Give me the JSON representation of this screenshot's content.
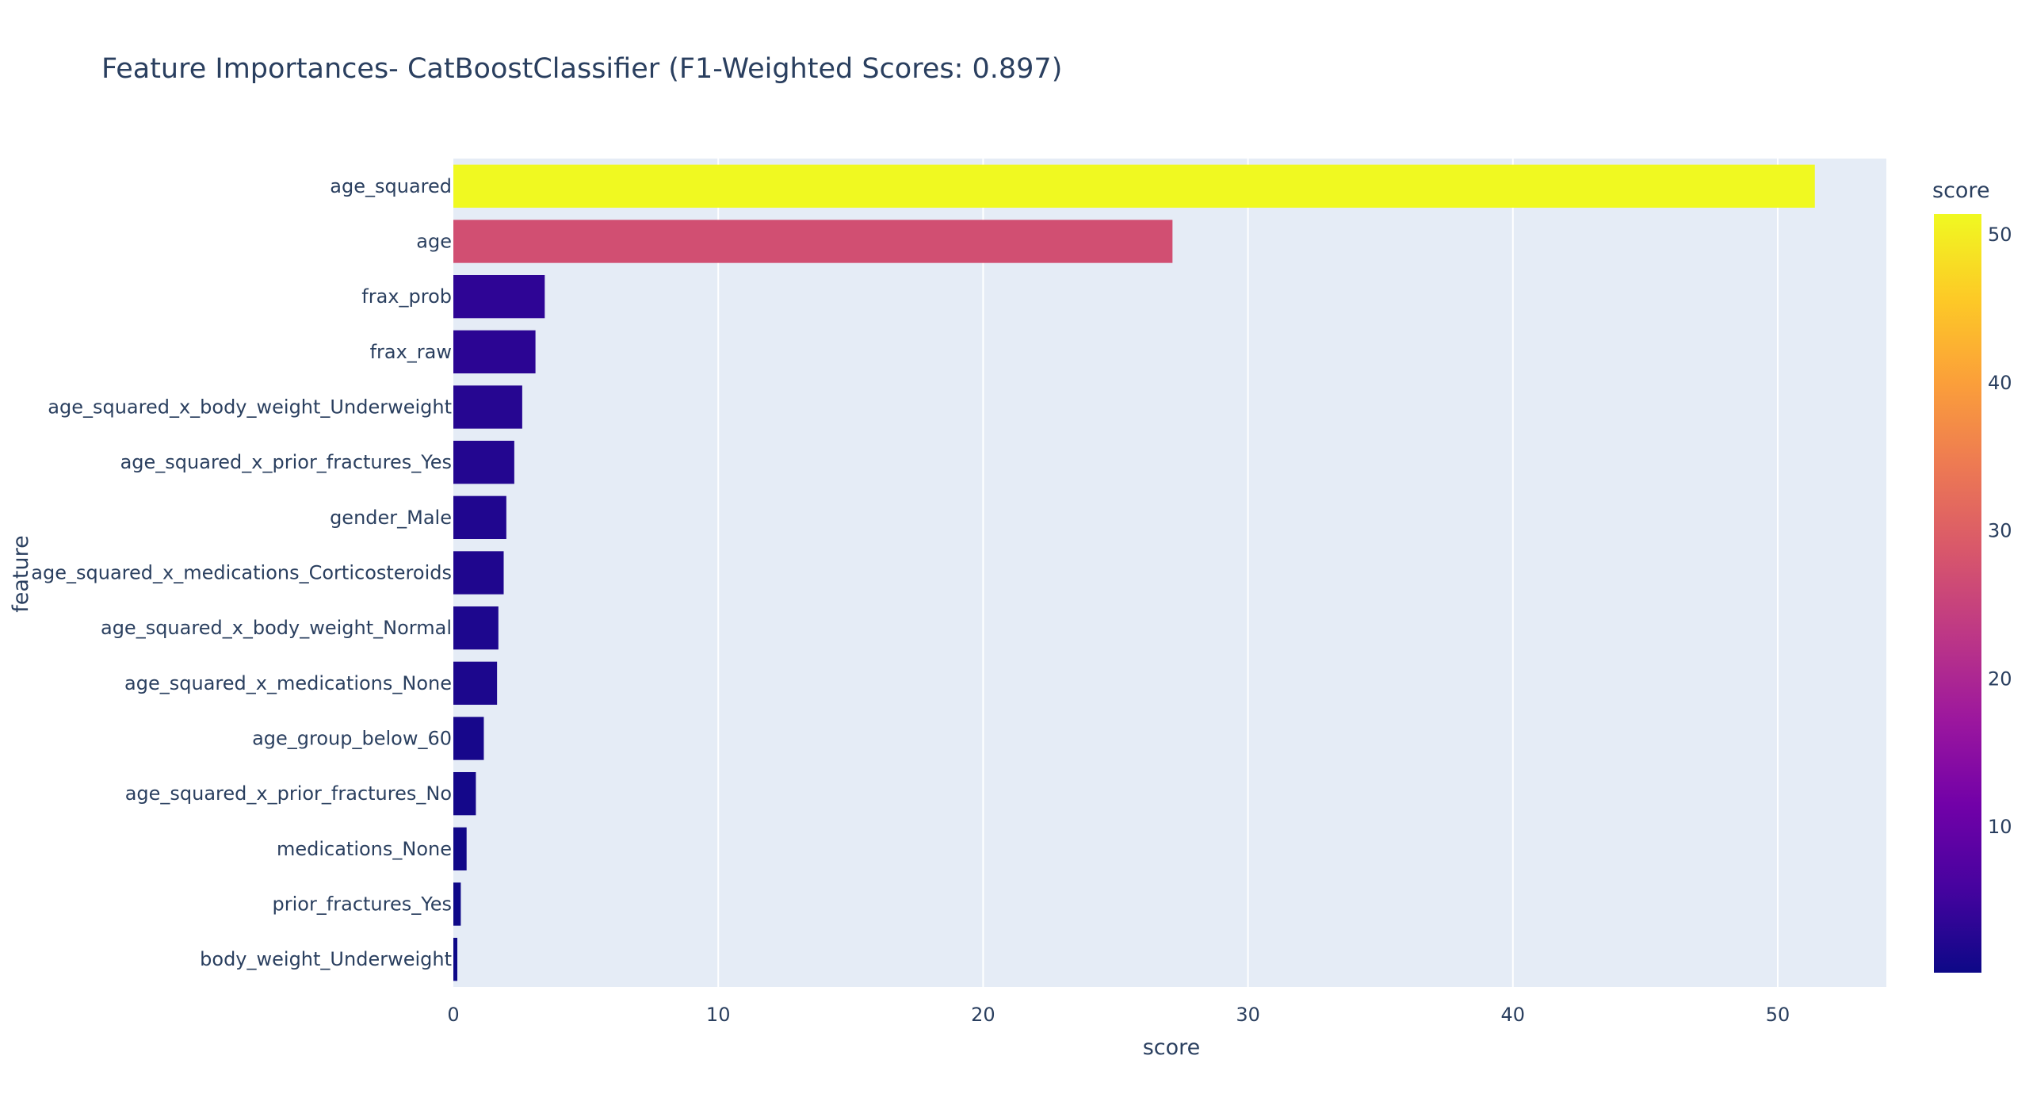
{
  "chart_data": {
    "type": "bar",
    "orientation": "horizontal",
    "title": "Feature Importances- CatBoostClassifier (F1-Weighted Scores: 0.897)",
    "xlabel": "score",
    "ylabel": "feature",
    "xlim": [
      0,
      54.1
    ],
    "x_ticks": [
      0,
      10,
      20,
      30,
      40,
      50
    ],
    "grid": true,
    "categories": [
      "age_squared",
      "age",
      "frax_prob",
      "frax_raw",
      "age_squared_x_body_weight_Underweight",
      "age_squared_x_prior_fractures_Yes",
      "gender_Male",
      "age_squared_x_medications_Corticosteroids",
      "age_squared_x_body_weight_Normal",
      "age_squared_x_medications_None",
      "age_group_below_60",
      "age_squared_x_prior_fractures_No",
      "medications_None",
      "prior_fractures_Yes",
      "body_weight_Underweight"
    ],
    "values": [
      51.4,
      27.15,
      3.45,
      3.1,
      2.6,
      2.3,
      2.0,
      1.9,
      1.7,
      1.65,
      1.15,
      0.85,
      0.5,
      0.28,
      0.15
    ],
    "colorbar": {
      "title": "score",
      "ticks": [
        10,
        20,
        30,
        40,
        50
      ],
      "range": [
        0.15,
        51.4
      ],
      "colorscale": [
        "#0d0887",
        "#46039f",
        "#7201a8",
        "#9c179e",
        "#bd3786",
        "#d8576b",
        "#ed7953",
        "#fb9f3a",
        "#fdca26",
        "#f0f921"
      ]
    },
    "colors": {
      "plot_bg": "#e5ecf6",
      "grid": "#ffffff",
      "text": "#2a3f5f"
    }
  }
}
